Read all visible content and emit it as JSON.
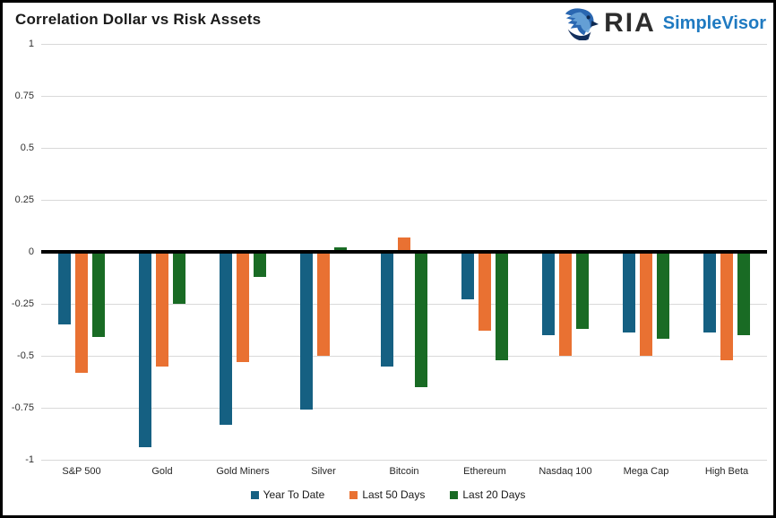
{
  "header": {
    "title": "Correlation Dollar vs Risk Assets",
    "logo": {
      "brand": "RIA",
      "product": "SimpleVisor"
    }
  },
  "colors": {
    "series_blue": "#156082",
    "series_orange": "#E97132",
    "series_green": "#196B24",
    "gridline": "#D9D9D9",
    "zero_line": "#000000",
    "brand_text_dark": "#2D2D2D",
    "brand_text_blue": "#1F7AC1",
    "eagle_blue": "#2A67B1"
  },
  "chart_data": {
    "type": "bar",
    "title": "Correlation Dollar vs Risk Assets",
    "categories": [
      "S&P 500",
      "Gold",
      "Gold Miners",
      "Silver",
      "Bitcoin",
      "Ethereum",
      "Nasdaq 100",
      "Mega Cap",
      "High Beta"
    ],
    "series": [
      {
        "name": "Year To Date",
        "color": "#156082",
        "values": [
          -0.35,
          -0.94,
          -0.83,
          -0.76,
          -0.55,
          -0.23,
          -0.4,
          -0.39,
          -0.39
        ]
      },
      {
        "name": "Last 50 Days",
        "color": "#E97132",
        "values": [
          -0.58,
          -0.55,
          -0.53,
          -0.5,
          0.07,
          -0.38,
          -0.5,
          -0.5,
          -0.52
        ]
      },
      {
        "name": "Last 20 Days",
        "color": "#196B24",
        "values": [
          -0.41,
          -0.25,
          -0.12,
          0.02,
          -0.65,
          -0.52,
          -0.37,
          -0.42,
          -0.4
        ]
      }
    ],
    "xlabel": "",
    "ylabel": "",
    "ylim": [
      -1,
      1
    ],
    "yticks": [
      1,
      0.75,
      0.5,
      0.25,
      0,
      -0.25,
      -0.5,
      -0.75,
      -1
    ],
    "grid": true,
    "legend_position": "bottom"
  }
}
